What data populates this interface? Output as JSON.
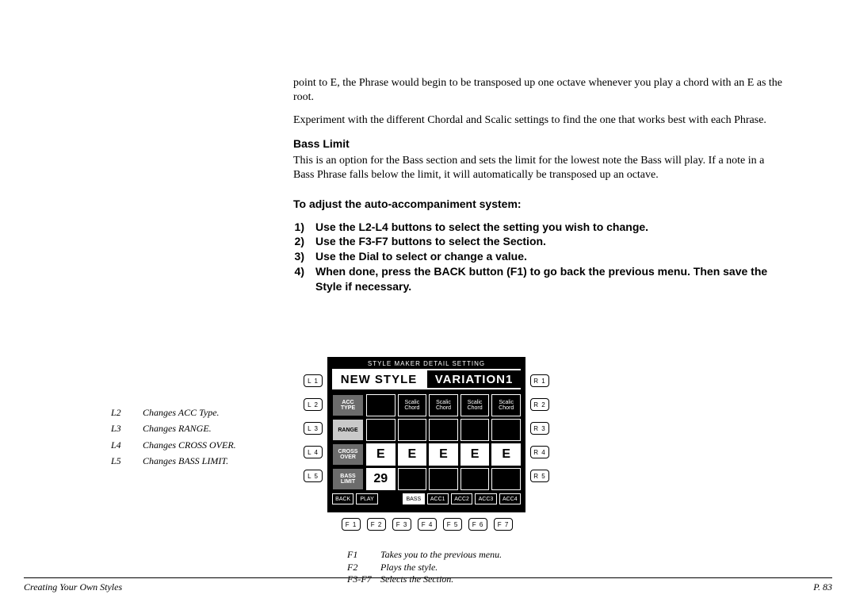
{
  "body": {
    "p1": "point to E, the Phrase would begin to be transposed up one octave whenever you play a chord with an E as the root.",
    "p2": "Experiment with the different Chordal and Scalic settings to find the one that works best with each Phrase.",
    "heading": "Bass Limit",
    "p3": "This is an option for the Bass section and sets the limit for the lowest note the Bass will play.  If a note in a Bass Phrase falls below the limit, it will automatically be transposed up an octave.",
    "instr": "To adjust the auto-accompaniment system:",
    "steps": {
      "n1": "1)",
      "s1": "Use the L2-L4 buttons to select the setting you wish to change.",
      "n2": "2)",
      "s2": "Use the F3-F7 buttons to select the Section.",
      "n3": "3)",
      "s3": "Use the Dial to select or change a value.",
      "n4": "4)",
      "s4": "When done, press the BACK button (F1) to go back the previous menu.  Then save the Style if necessary."
    }
  },
  "legend_left": {
    "r1k": "L2",
    "r1t": "Changes ACC Type.",
    "r2k": "L3",
    "r2t": "Changes RANGE.",
    "r3k": "L4",
    "r3t": "Changes CROSS OVER.",
    "r4k": "L5",
    "r4t": "Changes BASS LIMIT."
  },
  "legend_bottom": {
    "r1k": "F1",
    "r1t": "Takes you to the previous menu.",
    "r2k": "F2",
    "r2t": "Plays the style.",
    "r3k": "F3-F7",
    "r3t": "Selects the Section."
  },
  "device": {
    "lcd_title": "STYLE MAKER DETAIL SETTING",
    "header_left": "NEW STYLE",
    "header_right": "VARIATION1",
    "side_left": [
      "L 1",
      "L 2",
      "L 3",
      "L 4",
      "L 5"
    ],
    "side_right": [
      "R 1",
      "R 2",
      "R 3",
      "R 4",
      "R 5"
    ],
    "bottom": [
      "F 1",
      "F 2",
      "F 3",
      "F 4",
      "F 5",
      "F 6",
      "F 7"
    ],
    "row_labels": {
      "acc_type_1": "ACC",
      "acc_type_2": "TYPE",
      "range": "RANGE",
      "cross_1": "CROSS",
      "cross_2": "OVER",
      "bass_1": "BASS",
      "bass_2": "LIMIT"
    },
    "scalic": {
      "l1": "Scalic",
      "l2": "Chord"
    },
    "cross_vals": [
      "E",
      "E",
      "E",
      "E",
      "E"
    ],
    "bass_val": "29",
    "footer": {
      "back": "BACK",
      "play": "PLAY",
      "bass": "BASS",
      "acc1": "ACC1",
      "acc2": "ACC2",
      "acc3": "ACC3",
      "acc4": "ACC4"
    }
  },
  "footer": {
    "left": "Creating Your Own Styles",
    "right": "P. 83"
  }
}
